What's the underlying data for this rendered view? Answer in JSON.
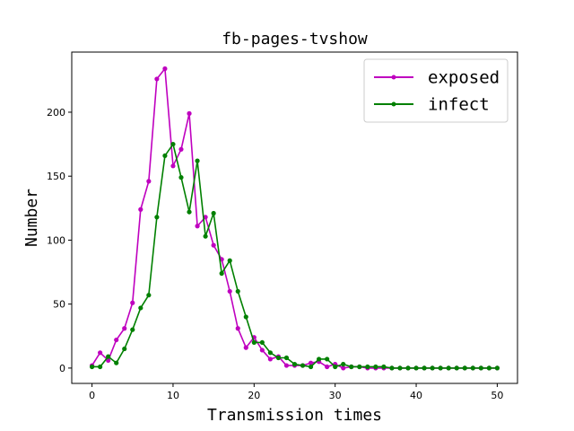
{
  "chart_data": {
    "type": "line",
    "title": "fb-pages-tvshow",
    "xlabel": "Transmission times",
    "ylabel": "Number",
    "xlim": [
      -2.5,
      52.5
    ],
    "ylim": [
      -12,
      247
    ],
    "xticks": [
      0,
      10,
      20,
      30,
      40,
      50
    ],
    "yticks": [
      0,
      50,
      100,
      150,
      200
    ],
    "grid": false,
    "legend_position": "top-right",
    "x": [
      0,
      1,
      2,
      3,
      4,
      5,
      6,
      7,
      8,
      9,
      10,
      11,
      12,
      13,
      14,
      15,
      16,
      17,
      18,
      19,
      20,
      21,
      22,
      23,
      24,
      25,
      26,
      27,
      28,
      29,
      30,
      31,
      32,
      33,
      34,
      35,
      36,
      37,
      38,
      39,
      40,
      41,
      42,
      43,
      44,
      45,
      46,
      47,
      48,
      49,
      50
    ],
    "series": [
      {
        "name": "exposed",
        "color": "#bf00bf",
        "values": [
          2,
          12,
          6,
          22,
          31,
          51,
          124,
          146,
          226,
          234,
          158,
          171,
          199,
          111,
          118,
          96,
          85,
          60,
          31,
          16,
          24,
          14,
          7,
          9,
          2,
          2,
          2,
          4,
          5,
          1,
          3,
          0,
          1,
          1,
          0,
          0,
          0,
          0,
          0,
          0,
          0,
          0,
          0,
          0,
          0,
          0,
          0,
          0,
          0,
          0,
          0
        ]
      },
      {
        "name": "infect",
        "color": "#008000",
        "values": [
          1,
          1,
          9,
          4,
          15,
          30,
          47,
          57,
          118,
          166,
          175,
          149,
          122,
          162,
          103,
          121,
          74,
          84,
          60,
          40,
          20,
          20,
          12,
          8,
          8,
          3,
          2,
          1,
          7,
          7,
          1,
          3,
          1,
          1,
          1,
          1,
          1,
          0,
          0,
          0,
          0,
          0,
          0,
          0,
          0,
          0,
          0,
          0,
          0,
          0,
          0
        ]
      }
    ]
  }
}
